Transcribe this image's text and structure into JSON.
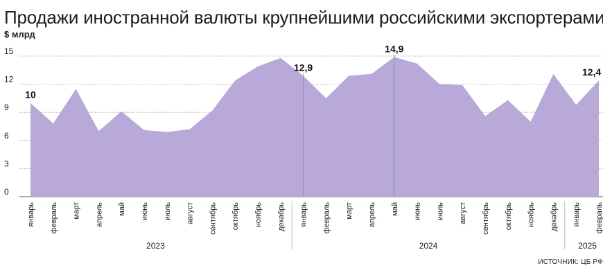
{
  "title": "Продажи иностранной валюты крупнейшими российскими экспортерами",
  "unit": "$ млрд",
  "source": "ИСТОЧНИК: ЦБ РФ",
  "colors": {
    "area": "#b8a9d8",
    "grid": "#9a9a9a",
    "divider": "#888888"
  },
  "chart_data": {
    "type": "area",
    "title": "Продажи иностранной валюты крупнейшими российскими экспортерами",
    "ylabel": "$ млрд",
    "xlabel": "",
    "ylim": [
      0,
      15
    ],
    "yticks": [
      0,
      3,
      6,
      9,
      12,
      15
    ],
    "grid": true,
    "x": [
      "январь",
      "февраль",
      "март",
      "апрель",
      "май",
      "июнь",
      "июль",
      "август",
      "сентябрь",
      "октябрь",
      "ноябрь",
      "декабрь",
      "январь",
      "февраль",
      "март",
      "апрель",
      "май",
      "июнь",
      "июль",
      "август",
      "сентябрь",
      "октябрь",
      "ноябрь",
      "декабрь",
      "январь",
      "февраль"
    ],
    "values": [
      10,
      7.8,
      11.5,
      7.0,
      9.1,
      7.1,
      6.9,
      7.2,
      9.2,
      12.4,
      13.9,
      14.8,
      12.9,
      10.5,
      12.9,
      13.1,
      14.9,
      14.2,
      12.0,
      11.9,
      8.6,
      10.3,
      8.0,
      13.1,
      9.8,
      12.4
    ],
    "years": [
      {
        "label": "2023",
        "start": 0,
        "count": 12
      },
      {
        "label": "2024",
        "start": 12,
        "count": 12
      },
      {
        "label": "2025",
        "start": 24,
        "count": 2
      }
    ],
    "annotations": [
      {
        "index": 0,
        "label": "10"
      },
      {
        "index": 12,
        "label": "12,9"
      },
      {
        "index": 16,
        "label": "14,9"
      },
      {
        "index": 25,
        "label": "12,4"
      }
    ],
    "markers": [
      12,
      16
    ]
  }
}
